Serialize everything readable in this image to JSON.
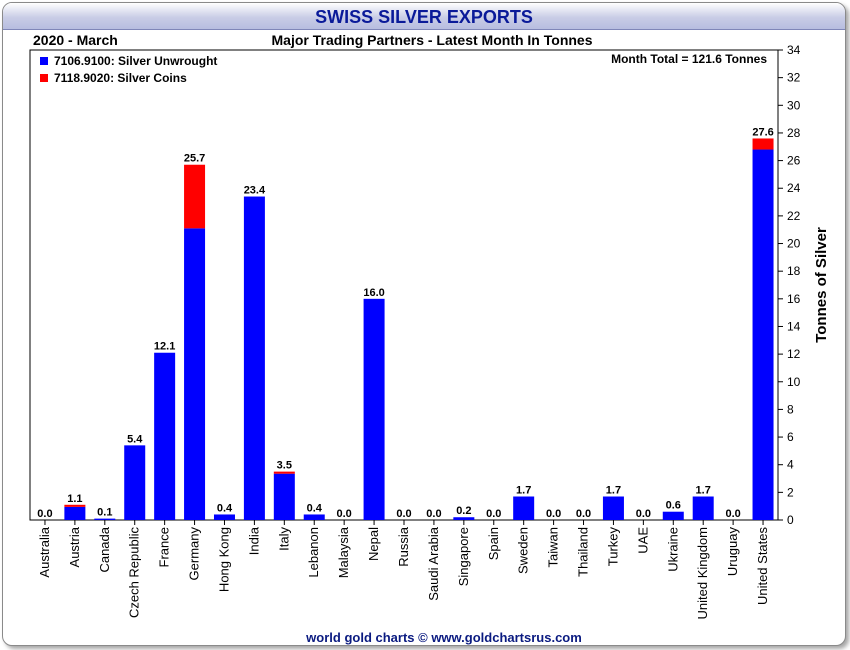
{
  "chart_data": {
    "type": "bar",
    "title": "SWISS SILVER EXPORTS",
    "subtitle": "Major Trading Partners - Latest Month In Tonnes",
    "period": "2020 - March",
    "month_total": "Month Total = 121.6 Tonnes",
    "ylabel": "Tonnes of Silver",
    "ylim": [
      0,
      34
    ],
    "ytick_step": 2,
    "grid": false,
    "legend_position": "top-left",
    "footer": "world gold charts © www.goldchartsrus.com",
    "categories": [
      "Australia",
      "Austria",
      "Canada",
      "Czech Republic",
      "France",
      "Germany",
      "Hong Kong",
      "India",
      "Italy",
      "Lebanon",
      "Malaysia",
      "Nepal",
      "Russia",
      "Saudi Arabia",
      "Singapore",
      "Spain",
      "Sweden",
      "Taiwan",
      "Thailand",
      "Turkey",
      "UAE",
      "Ukraine",
      "United Kingdom",
      "Uruguay",
      "United States"
    ],
    "series": [
      {
        "name": "7106.9100: Silver Unwrought",
        "color": "#0000ff",
        "values": [
          0,
          0.95,
          0.1,
          5.4,
          12.1,
          21.1,
          0.4,
          23.4,
          3.35,
          0.4,
          0,
          16.0,
          0,
          0,
          0.2,
          0,
          1.7,
          0,
          0,
          1.7,
          0,
          0.6,
          1.7,
          0,
          26.8
        ]
      },
      {
        "name": "7118.9020: Silver Coins",
        "color": "#ff0000",
        "values": [
          0,
          0.15,
          0,
          0,
          0,
          4.6,
          0,
          0,
          0.15,
          0,
          0,
          0,
          0,
          0,
          0,
          0,
          0,
          0,
          0,
          0,
          0,
          0,
          0,
          0,
          0.8
        ]
      }
    ],
    "totals": [
      "0.0",
      "1.1",
      "0.1",
      "5.4",
      "12.1",
      "25.7",
      "0.4",
      "23.4",
      "3.5",
      "0.4",
      "0.0",
      "16.0",
      "0.0",
      "0.0",
      "0.2",
      "0.0",
      "1.7",
      "0.0",
      "0.0",
      "1.7",
      "0.0",
      "0.6",
      "1.7",
      "0.0",
      "27.6"
    ]
  }
}
